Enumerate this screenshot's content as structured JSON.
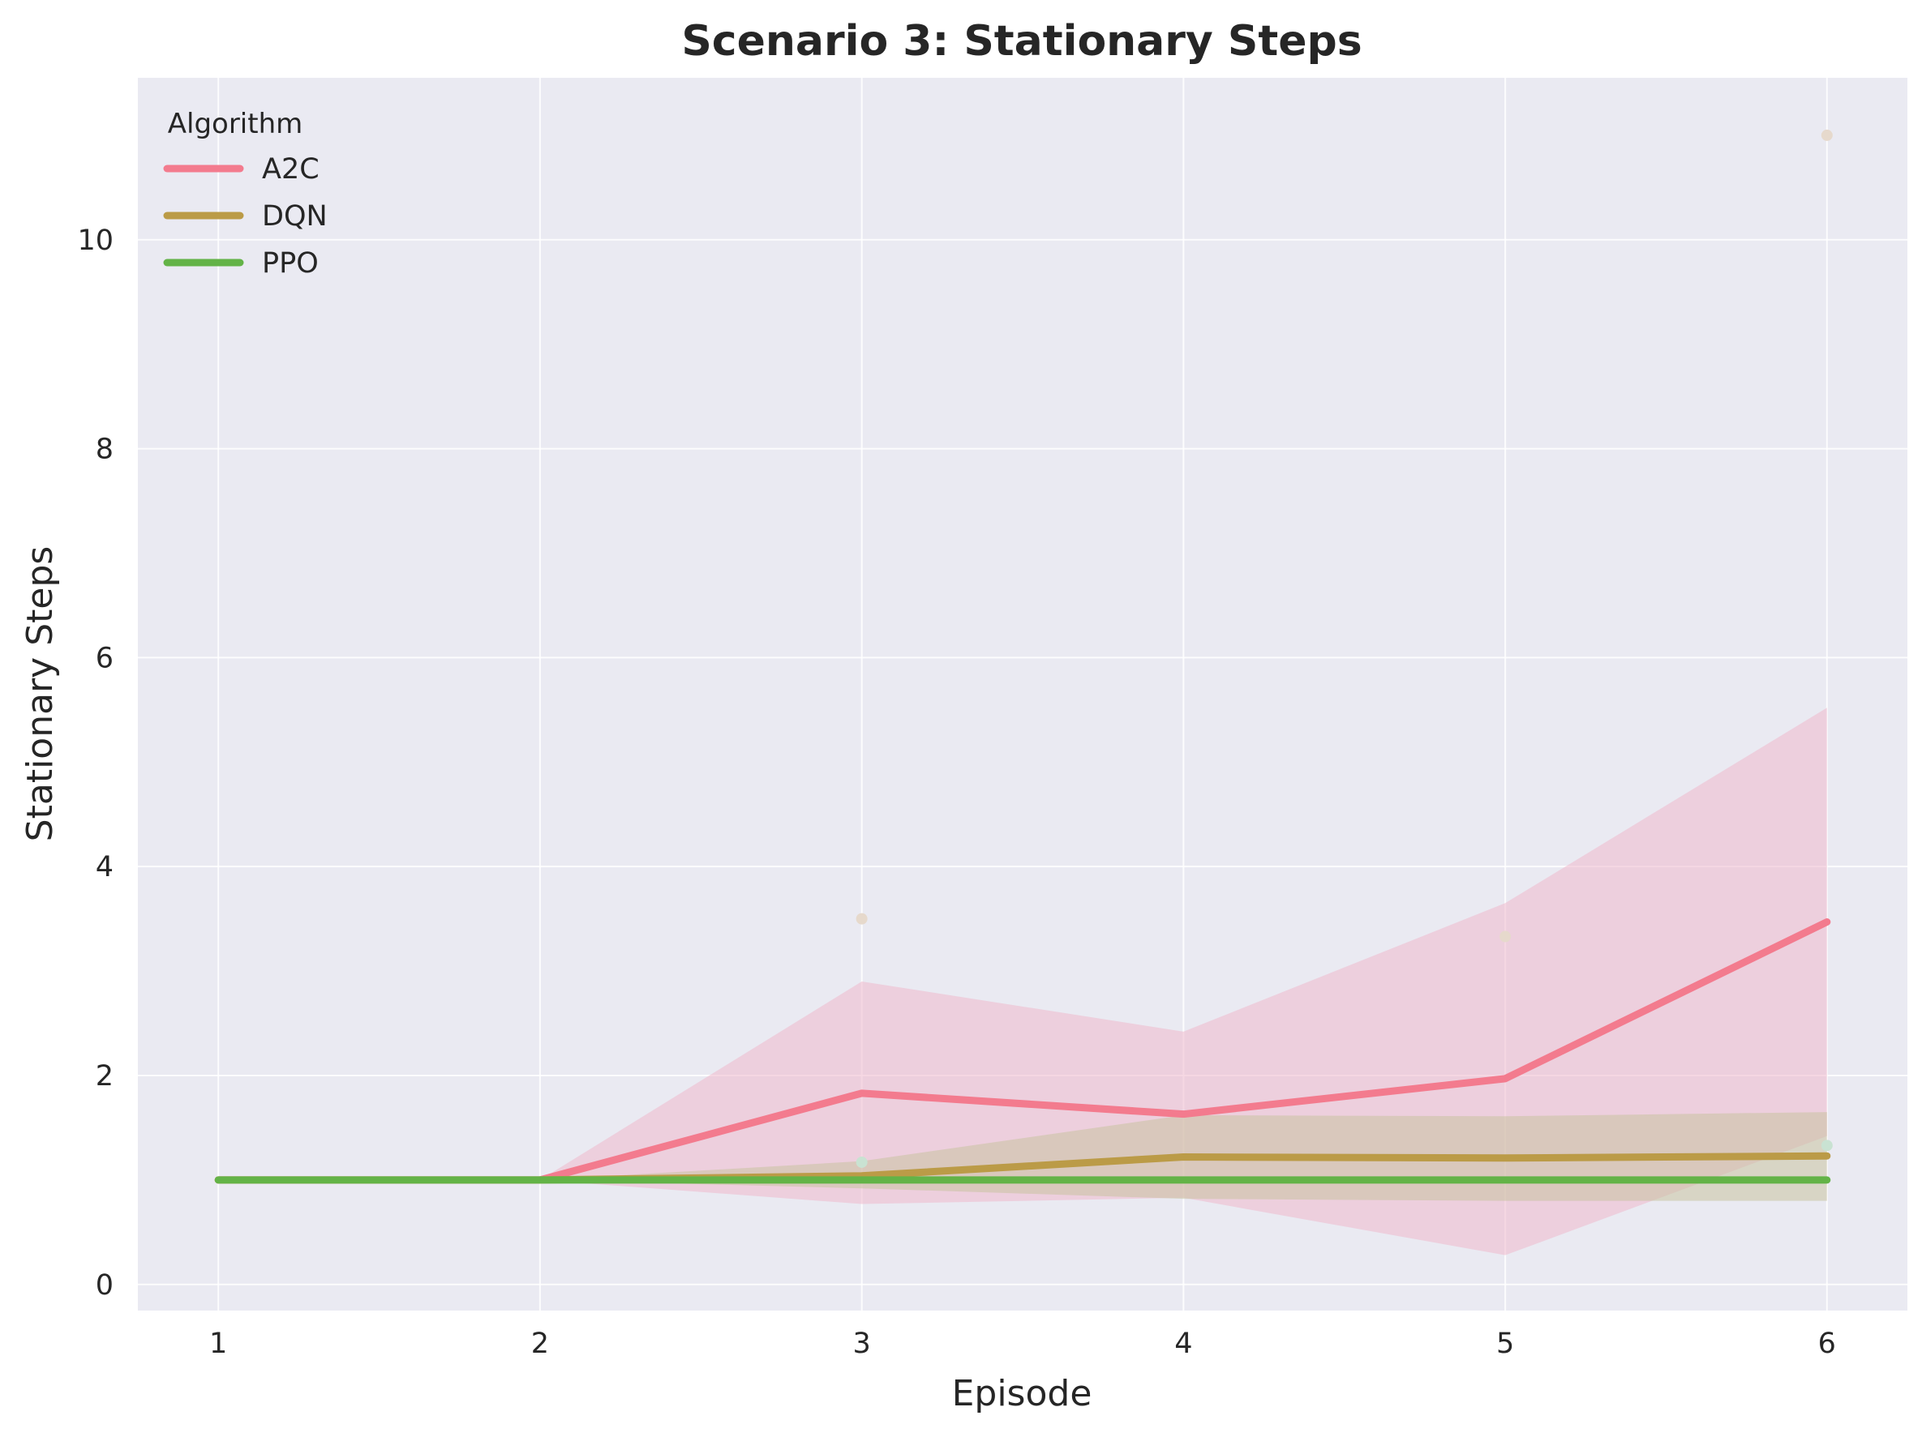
{
  "chart_data": {
    "type": "line",
    "title": "Scenario 3: Stationary Steps",
    "xlabel": "Episode",
    "ylabel": "Stationary Steps",
    "x": [
      1,
      2,
      3,
      4,
      5,
      6
    ],
    "xlim": [
      0.75,
      6.25
    ],
    "ylim": [
      -0.25,
      11.55
    ],
    "xticks": [
      1,
      2,
      3,
      4,
      5,
      6
    ],
    "yticks": [
      0,
      2,
      4,
      6,
      8,
      10
    ],
    "grid": true,
    "legend": {
      "title": "Algorithm",
      "placement": "top-left"
    },
    "series": [
      {
        "name": "A2C",
        "color": "#f37b8e",
        "band_color": "#eeb8cc",
        "values": [
          1.0,
          1.0,
          1.83,
          1.63,
          1.97,
          3.47
        ],
        "lower": [
          1.0,
          1.0,
          0.77,
          0.83,
          0.28,
          1.42
        ],
        "upper": [
          1.0,
          1.0,
          2.9,
          2.42,
          3.65,
          5.52
        ]
      },
      {
        "name": "DQN",
        "color": "#bb9b47",
        "band_color": "#c8c2a0",
        "values": [
          1.0,
          1.0,
          1.04,
          1.22,
          1.21,
          1.23
        ],
        "lower": [
          1.0,
          1.0,
          0.92,
          0.82,
          0.8,
          0.8
        ],
        "upper": [
          1.0,
          1.0,
          1.18,
          1.62,
          1.61,
          1.65
        ]
      },
      {
        "name": "PPO",
        "color": "#63b347",
        "band_color": "#b6dcb0",
        "values": [
          1.0,
          1.0,
          1.0,
          1.0,
          1.0,
          1.0
        ],
        "lower": [
          1.0,
          1.0,
          1.0,
          1.0,
          1.0,
          1.0
        ],
        "upper": [
          1.0,
          1.0,
          1.0,
          1.0,
          1.0,
          1.0
        ]
      }
    ],
    "scatter_points": [
      {
        "x": 3,
        "y": 3.5,
        "color": "#e6d9cc"
      },
      {
        "x": 5,
        "y": 3.33,
        "color": "#e6d9cc"
      },
      {
        "x": 6,
        "y": 11.0,
        "color": "#e6d9cc"
      },
      {
        "x": 3,
        "y": 1.17,
        "color": "#c9e2d2"
      },
      {
        "x": 6,
        "y": 1.33,
        "color": "#c9e2d2"
      }
    ]
  }
}
